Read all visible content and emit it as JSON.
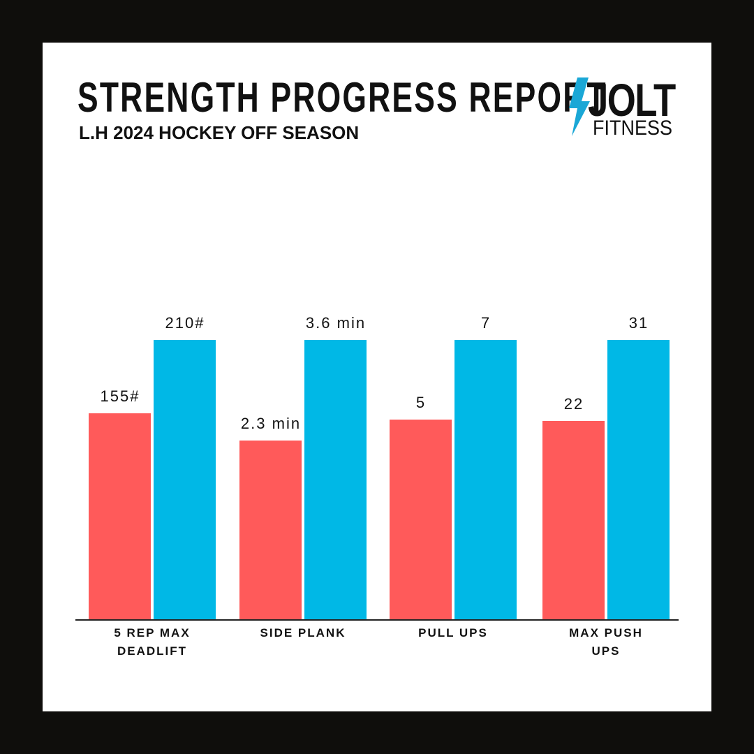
{
  "chart_data": {
    "type": "bar",
    "title": "STRENGTH PROGRESS REPORT",
    "subtitle": "L.H 2024 HOCKEY OFF SEASON",
    "logo": {
      "name": "JOLT",
      "tagline": "FITNESS"
    },
    "categories": [
      "5 REP MAX DEADLIFT",
      "SIDE PLANK",
      "PULL UPS",
      "MAX PUSH UPS"
    ],
    "series": [
      {
        "color": "#ff5a5a",
        "values": [
          155,
          2.3,
          5,
          22
        ],
        "value_labels": [
          "155#",
          "2.3 min",
          "5",
          "22"
        ]
      },
      {
        "color": "#00b8e6",
        "values": [
          210,
          3.6,
          7,
          31
        ],
        "value_labels": [
          "210#",
          "3.6 min",
          "7",
          "31"
        ]
      }
    ]
  }
}
